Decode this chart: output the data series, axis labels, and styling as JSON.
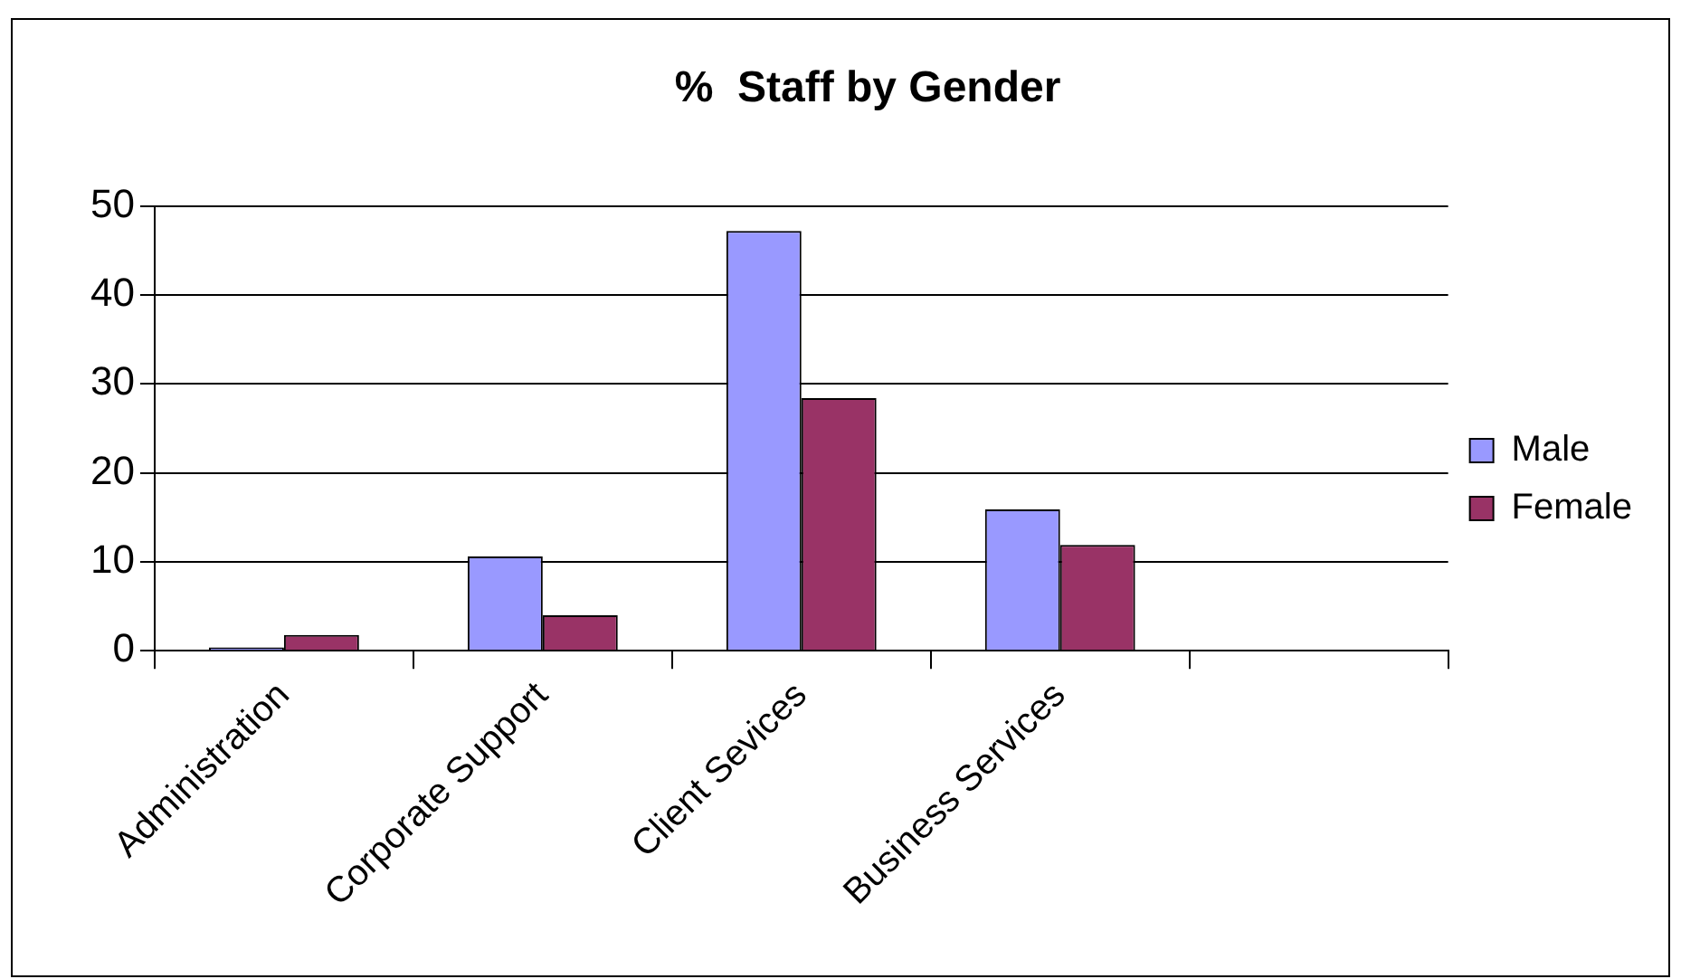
{
  "chart_data": {
    "type": "bar",
    "title": "%  Staff by Gender",
    "categories": [
      "Administration",
      "Corporate Support",
      "Client Sevices",
      "Business Services",
      null
    ],
    "series": [
      {
        "name": "Male",
        "color": "#9999ff",
        "values": [
          0.4,
          10.6,
          47.2,
          15.9,
          null
        ]
      },
      {
        "name": "Female",
        "color": "#993366",
        "values": [
          1.8,
          4.0,
          28.4,
          11.9,
          null
        ]
      }
    ],
    "ylim": [
      0,
      50
    ],
    "yticks": [
      0,
      10,
      20,
      30,
      40,
      50
    ],
    "grid": "y",
    "legend": "right"
  }
}
